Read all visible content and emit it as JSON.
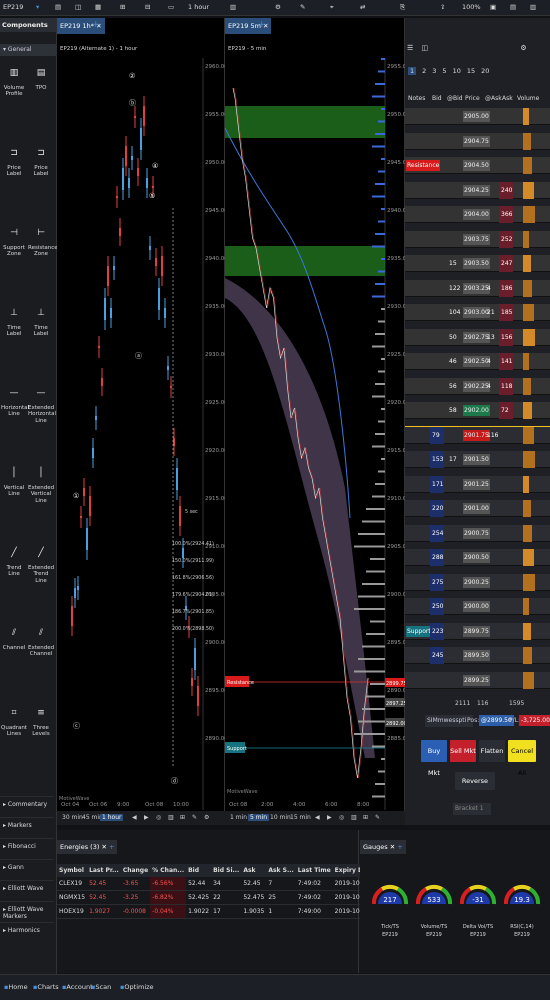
{
  "topbar": {
    "instrument": "EP219",
    "interval": "1 hour",
    "zoom": "100%"
  },
  "components": {
    "header": "Components",
    "section": "General",
    "items": [
      {
        "label": "Volume Profile",
        "icon": "volume-profile-icon"
      },
      {
        "label": "TPO",
        "icon": "tpo-icon"
      },
      {
        "label": "Price Label",
        "icon": "price-label-icon"
      },
      {
        "label": "Price Label",
        "icon": "price-label-icon"
      },
      {
        "label": "Support Zone",
        "icon": "support-zone-icon"
      },
      {
        "label": "Resistance Zone",
        "icon": "resistance-zone-icon"
      },
      {
        "label": "Time Label",
        "icon": "time-label-icon"
      },
      {
        "label": "Time Label",
        "icon": "time-label-icon"
      },
      {
        "label": "Horizontal Line",
        "icon": "horizontal-line-icon"
      },
      {
        "label": "Extended Horizontal Line",
        "icon": "extended-horizontal-line-icon"
      },
      {
        "label": "Vertical Line",
        "icon": "vertical-line-icon"
      },
      {
        "label": "Extended Vertical Line",
        "icon": "extended-vertical-line-icon"
      },
      {
        "label": "Trend Line",
        "icon": "trend-line-icon"
      },
      {
        "label": "Extended Trend Line",
        "icon": "extended-trend-line-icon"
      },
      {
        "label": "Channel",
        "icon": "channel-icon"
      },
      {
        "label": "Extended Channel",
        "icon": "extended-channel-icon"
      },
      {
        "label": "Quadrant Lines",
        "icon": "quadrant-lines-icon"
      },
      {
        "label": "Three Levels",
        "icon": "three-levels-icon"
      }
    ],
    "menu": [
      "Commentary",
      "Markers",
      "Fibonacci",
      "Gann",
      "Elliott Wave",
      "Elliott Wave Markers",
      "Harmonics"
    ]
  },
  "chart1": {
    "tab": "EP219 1h*",
    "title": "EP219 (Alternate 1) - 1 hour",
    "prices": [
      "2960.00",
      "2955.00",
      "2950.00",
      "2945.00",
      "2940.00",
      "2935.00",
      "2930.00",
      "2925.00",
      "2920.00",
      "2915.00",
      "2910.00",
      "2905.00",
      "2900.00",
      "2895.00",
      "2890.00"
    ],
    "dates": [
      "Oct 04",
      "Oct 06",
      "9:00",
      "Oct 08",
      "10:00"
    ],
    "labels": [
      "5 sec",
      "100.0%(2924.41)",
      "150.0%(2911.99)",
      "161.8%(2906.56)",
      "179.6%(2904.01)",
      "186.7%(2901.85)",
      "200.0%(2898.50)"
    ],
    "watermark": "MotiveWave",
    "buttons": [
      "30 min",
      "45 min",
      "1 hour"
    ]
  },
  "chart2": {
    "tab": "EP219 5m",
    "title": "EP219 - 5 min",
    "prices": [
      "2955.00",
      "2950.00",
      "2945.00",
      "2940.00",
      "2935.00",
      "2930.00",
      "2925.00",
      "2920.00",
      "2915.00",
      "2910.00",
      "2905.00",
      "2900.00",
      "2895.00",
      "2890.00",
      "2885.00"
    ],
    "times": [
      "Oct 08",
      "2:00",
      "4:00",
      "6:00",
      "8:00"
    ],
    "resistance": "Resistance",
    "support": "Support",
    "tags": [
      "2899.75",
      "2897.25",
      "2892.00"
    ],
    "watermark": "MotiveWave",
    "buttons": [
      "1 min",
      "5 min",
      "10 min",
      "15 min"
    ]
  },
  "dom": {
    "tabs": [
      "1",
      "2",
      "3",
      "5",
      "10",
      "15",
      "20"
    ],
    "headers": [
      "Notes",
      "Bid",
      "@Bid",
      "Price",
      "@Ask",
      "Ask",
      "Volume"
    ],
    "rows": [
      {
        "note": "",
        "bid": "",
        "abid": "",
        "price": "2905.00",
        "aask": "",
        "ask": "",
        "vol": ""
      },
      {
        "note": "",
        "bid": "",
        "abid": "",
        "price": "2904.75",
        "aask": "",
        "ask": "",
        "vol": ""
      },
      {
        "note": "Resistance",
        "bid": "",
        "abid": "",
        "price": "2904.50",
        "aask": "",
        "ask": "",
        "vol": ""
      },
      {
        "note": "",
        "bid": "",
        "abid": "",
        "price": "2904.25",
        "aask": "",
        "ask": "240",
        "vol": ""
      },
      {
        "note": "",
        "bid": "",
        "abid": "",
        "price": "2904.00",
        "aask": "",
        "ask": "366",
        "vol": ""
      },
      {
        "note": "",
        "bid": "",
        "abid": "",
        "price": "2903.75",
        "aask": "",
        "ask": "252",
        "vol": ""
      },
      {
        "note": "",
        "bid": "",
        "abid": "15",
        "price": "2903.50",
        "aask": "",
        "ask": "247",
        "vol": ""
      },
      {
        "note": "",
        "bid": "",
        "abid": "122",
        "price": "2903.25",
        "aask": "4",
        "ask": "186",
        "vol": ""
      },
      {
        "note": "",
        "bid": "",
        "abid": "104",
        "price": "2903.00",
        "aask": "21",
        "ask": "185",
        "vol": ""
      },
      {
        "note": "",
        "bid": "",
        "abid": "50",
        "price": "2902.75",
        "aask": "13",
        "ask": "156",
        "vol": ""
      },
      {
        "note": "",
        "bid": "",
        "abid": "46",
        "price": "2902.50",
        "aask": "4",
        "ask": "141",
        "vol": ""
      },
      {
        "note": "",
        "bid": "",
        "abid": "56",
        "price": "2902.25",
        "aask": "4",
        "ask": "118",
        "vol": ""
      },
      {
        "note": "",
        "bid": "",
        "abid": "58",
        "price": "2902.00",
        "aask": "",
        "ask": "72",
        "vol": ""
      },
      {
        "note": "",
        "bid": "79",
        "abid": "",
        "price": "2901.75",
        "aask": "116",
        "ask": "",
        "vol": ""
      },
      {
        "note": "",
        "bid": "153",
        "abid": "17",
        "price": "2901.50",
        "aask": "",
        "ask": "",
        "vol": ""
      },
      {
        "note": "",
        "bid": "171",
        "abid": "",
        "price": "2901.25",
        "aask": "",
        "ask": "",
        "vol": ""
      },
      {
        "note": "",
        "bid": "220",
        "abid": "",
        "price": "2901.00",
        "aask": "",
        "ask": "",
        "vol": ""
      },
      {
        "note": "",
        "bid": "254",
        "abid": "",
        "price": "2900.75",
        "aask": "",
        "ask": "",
        "vol": ""
      },
      {
        "note": "",
        "bid": "288",
        "abid": "",
        "price": "2900.50",
        "aask": "",
        "ask": "",
        "vol": ""
      },
      {
        "note": "",
        "bid": "275",
        "abid": "",
        "price": "2900.25",
        "aask": "",
        "ask": "",
        "vol": ""
      },
      {
        "note": "",
        "bid": "250",
        "abid": "",
        "price": "2900.00",
        "aask": "",
        "ask": "",
        "vol": ""
      },
      {
        "note": "Support",
        "bid": "223",
        "abid": "",
        "price": "2899.75",
        "aask": "",
        "ask": "",
        "vol": ""
      },
      {
        "note": "",
        "bid": "245",
        "abid": "",
        "price": "2899.50",
        "aask": "",
        "ask": "",
        "vol": ""
      },
      {
        "note": "",
        "bid": "",
        "abid": "",
        "price": "2899.25",
        "aask": "",
        "ask": "",
        "vol": ""
      }
    ],
    "totals": [
      "2111",
      "116",
      "1595"
    ],
    "account": "SIMmwesspti",
    "pos": "Pos:",
    "pos_val": "@2899.50",
    "pl": "P/L:",
    "pl_val": "-3,725.00",
    "buttons": {
      "buy": "Buy Mkt",
      "sell": "Sell Mkt",
      "flatten": "Flatten",
      "cancel": "Cancel All",
      "reverse": "Reverse"
    },
    "bracket": "Bracket 1"
  },
  "watchlist": {
    "tab": "Energies (3)",
    "headers": [
      "Symbol",
      "Last Pr...",
      "Change",
      "% Chan...",
      "Bid",
      "Bid Si...",
      "Ask",
      "Ask S...",
      "Last Time",
      "Expiry Date",
      "Open",
      "Close",
      "Low",
      "Hig"
    ],
    "rows": [
      [
        "CLEX19",
        "52.45",
        "-3.65",
        "-6.56%",
        "52.44",
        "34",
        "52.45",
        "7",
        "7:49:02",
        "2019-10-21",
        "52.61",
        "52.80",
        "51.81",
        "5"
      ],
      [
        "NGMX15",
        "52.45",
        "-3.25",
        "-6.82%",
        "52.425",
        "22",
        "52.475",
        "25",
        "7:49:02",
        "2019-10-23",
        "52.801",
        "52.775",
        "51.825",
        "5"
      ],
      [
        "HOEX19",
        "1.9027",
        "-0.0008",
        "-0.04%",
        "1.9022",
        "17",
        "1.9035",
        "1",
        "7:49:00",
        "2019-10-30",
        "1.9055",
        "1.9035",
        "1.8744",
        "1"
      ]
    ]
  },
  "gauges": {
    "tab": "Gauges",
    "items": [
      {
        "value": "217",
        "name": "Tick/TS",
        "sym": "EP219"
      },
      {
        "value": "533",
        "name": "Volume/TS",
        "sym": "EP219"
      },
      {
        "value": "-31",
        "name": "Delta Vol/TS",
        "sym": "EP219"
      },
      {
        "value": "19.3",
        "name": "RSI(C,14)",
        "sym": "EP219"
      }
    ]
  },
  "status": {
    "tabs": [
      "Home",
      "Charts",
      "Account",
      "Scan",
      "Optimize"
    ]
  }
}
